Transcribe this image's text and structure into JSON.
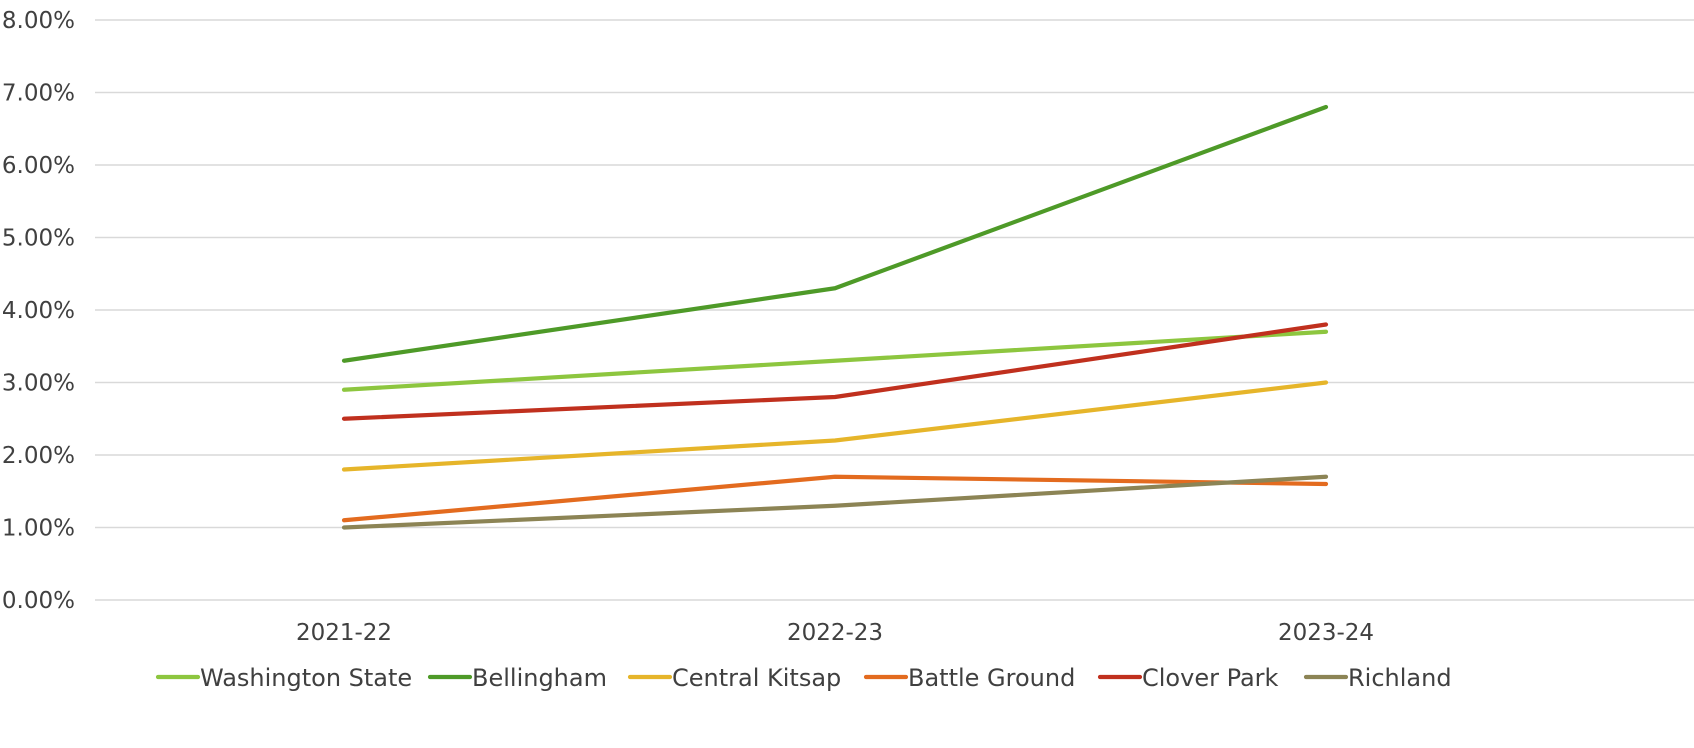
{
  "chart_data": {
    "type": "line",
    "categories": [
      "2021-22",
      "2022-23",
      "2023-24"
    ],
    "y_ticks": [
      "0.00%",
      "1.00%",
      "2.00%",
      "3.00%",
      "4.00%",
      "5.00%",
      "6.00%",
      "7.00%",
      "8.00%"
    ],
    "ylim": [
      0,
      8
    ],
    "grid": "horizontal",
    "legend_position": "bottom",
    "series": [
      {
        "name": "Washington State",
        "color": "#8DC63F",
        "values": [
          2.9,
          3.3,
          3.7
        ]
      },
      {
        "name": "Bellingham",
        "color": "#4E9A28",
        "values": [
          3.3,
          4.3,
          6.8
        ]
      },
      {
        "name": "Central Kitsap",
        "color": "#E6B52A",
        "values": [
          1.8,
          2.2,
          3.0
        ]
      },
      {
        "name": "Battle Ground",
        "color": "#E36B1F",
        "values": [
          1.1,
          1.7,
          1.6
        ]
      },
      {
        "name": "Clover Park",
        "color": "#C0301E",
        "values": [
          2.5,
          2.8,
          3.8
        ]
      },
      {
        "name": "Richland",
        "color": "#8C8455",
        "values": [
          1.0,
          1.3,
          1.7
        ]
      }
    ]
  }
}
